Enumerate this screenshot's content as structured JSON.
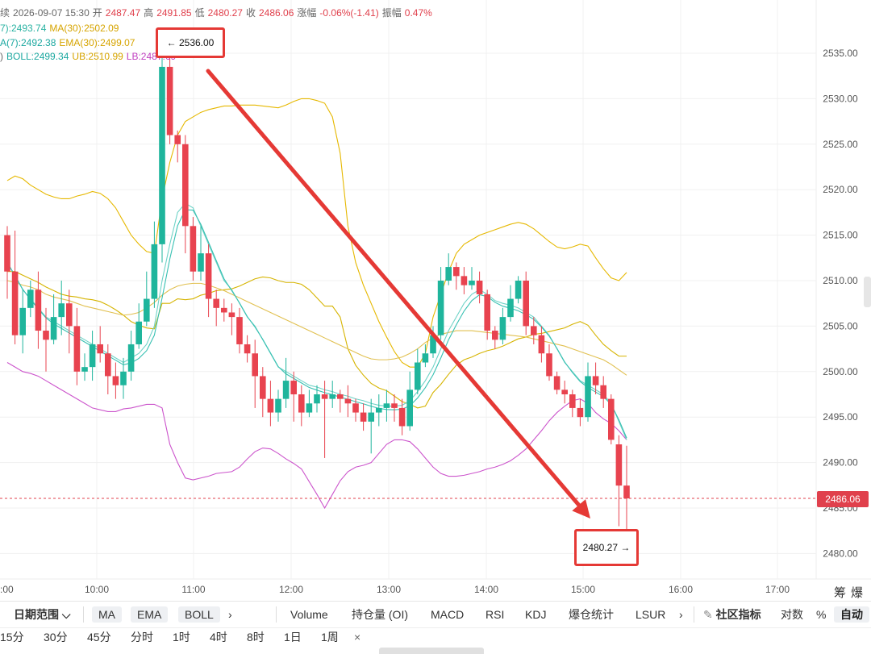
{
  "info": {
    "l1": {
      "prefix": "续",
      "datetime": "2026-09-07 15:30",
      "open_k": "开",
      "open_v": "2487.47",
      "high_k": "高",
      "high_v": "2491.85",
      "low_k": "低",
      "low_v": "2480.27",
      "close_k": "收",
      "close_v": "2486.06",
      "chg_k": "涨幅",
      "chg_v": "-0.06%(-1.41)",
      "amp_k": "振幅",
      "amp_v": "0.47%"
    },
    "l2": {
      "ma7": "7):2493.74",
      "ma30": "MA(30):2502.09"
    },
    "l3": {
      "ema7": "A(7):2492.38",
      "ema30": "EMA(30):2499.07"
    },
    "l4": {
      "prefix": ")",
      "boll": "BOLL:2499.34",
      "ub": "UB:2510.99",
      "lb": "LB:2487.69"
    }
  },
  "annotations": {
    "high_box": "← 2536.00",
    "low_box": "2480.27 →",
    "current_price": "2486.06"
  },
  "colors": {
    "up": "#1fb59c",
    "down": "#e8434f",
    "ma7": "#6fd3c7",
    "ma30": "#e8b200",
    "ema7": "#37c0b2",
    "ema30": "#e1c050",
    "boll": "#d6b400",
    "ub": "#e6b800",
    "lb": "#cc55cc",
    "arrow": "#e53935"
  },
  "corner": {
    "a": "筹",
    "b": "爆"
  },
  "toolbar1": {
    "date_range": "日期范围",
    "ma": "MA",
    "ema": "EMA",
    "boll": "BOLL",
    "more": "›",
    "volume": "Volume",
    "oi": "持仓量 (OI)",
    "macd": "MACD",
    "rsi": "RSI",
    "kdj": "KDJ",
    "liq": "爆仓统计",
    "lsur": "LSUR",
    "more2": "›",
    "community": "社区指标",
    "log": "对数",
    "pct": "%",
    "auto": "自动"
  },
  "toolbar2": {
    "i1": "15分",
    "i2": "30分",
    "i3": "45分",
    "i4": "分时",
    "i5": "1时",
    "i6": "4时",
    "i7": "8时",
    "i8": "1日",
    "i9": "1周",
    "close": "×"
  },
  "chart_data": {
    "type": "candlestick",
    "symbol_note": "",
    "y_ticks": [
      2535,
      2530,
      2525,
      2520,
      2515,
      2510,
      2505,
      2500,
      2495,
      2490,
      2485,
      2480
    ],
    "y_tick_labels": [
      "2535.00",
      "2530.00",
      "2525.00",
      "2520.00",
      "2515.00",
      "2510.00",
      "2505.00",
      "2500.00",
      "2495.00",
      "2490.00",
      "2485.00",
      "2480.00"
    ],
    "x_ticks": [
      "10:00",
      "11:00",
      "12:00",
      "13:00",
      "14:00",
      "15:00",
      "16:00",
      "17:00"
    ],
    "x_first_partial": ":00",
    "ylim": [
      2476.5,
      2539.0
    ],
    "current_price": 2486.06,
    "candles": [
      [
        2515.0,
        2511.0,
        2516.0,
        2508.0
      ],
      [
        2511.0,
        2504.0,
        2515.5,
        2503.0
      ],
      [
        2504.0,
        2507.0,
        2509.0,
        2502.0
      ],
      [
        2507.0,
        2509.0,
        2510.0,
        2506.0
      ],
      [
        2509.0,
        2504.5,
        2511.0,
        2502.5
      ],
      [
        2504.5,
        2503.5,
        2507.0,
        2500.0
      ],
      [
        2503.5,
        2506.0,
        2508.5,
        2503.0
      ],
      [
        2506.0,
        2507.5,
        2510.0,
        2504.0
      ],
      [
        2507.5,
        2505.0,
        2509.0,
        2502.0
      ],
      [
        2505.0,
        2500.0,
        2507.0,
        2498.5
      ],
      [
        2500.0,
        2500.5,
        2502.0,
        2499.0
      ],
      [
        2500.5,
        2503.0,
        2504.5,
        2499.0
      ],
      [
        2503.0,
        2502.0,
        2505.0,
        2501.0
      ],
      [
        2502.0,
        2499.5,
        2503.0,
        2497.5
      ],
      [
        2499.5,
        2498.5,
        2501.0,
        2497.0
      ],
      [
        2498.5,
        2500.0,
        2501.5,
        2497.0
      ],
      [
        2500.0,
        2503.0,
        2504.5,
        2499.0
      ],
      [
        2503.0,
        2505.5,
        2507.5,
        2502.5
      ],
      [
        2505.5,
        2508.0,
        2511.0,
        2505.0
      ],
      [
        2508.0,
        2514.0,
        2516.5,
        2507.0
      ],
      [
        2514.0,
        2533.5,
        2535.5,
        2512.0
      ],
      [
        2533.5,
        2526.0,
        2536.0,
        2525.0
      ],
      [
        2526.0,
        2525.0,
        2526.5,
        2523.0
      ],
      [
        2525.0,
        2516.0,
        2526.0,
        2513.0
      ],
      [
        2516.0,
        2511.0,
        2517.0,
        2510.0
      ],
      [
        2511.0,
        2513.0,
        2516.0,
        2510.0
      ],
      [
        2513.0,
        2508.0,
        2514.0,
        2506.0
      ],
      [
        2508.0,
        2507.0,
        2509.0,
        2505.0
      ],
      [
        2507.0,
        2506.5,
        2508.0,
        2505.5
      ],
      [
        2506.5,
        2506.0,
        2507.5,
        2504.0
      ],
      [
        2506.0,
        2503.0,
        2507.0,
        2502.0
      ],
      [
        2503.0,
        2502.0,
        2504.0,
        2501.0
      ],
      [
        2502.0,
        2499.5,
        2503.5,
        2496.0
      ],
      [
        2499.5,
        2497.0,
        2500.5,
        2495.0
      ],
      [
        2497.0,
        2495.5,
        2499.0,
        2494.0
      ],
      [
        2495.5,
        2497.0,
        2498.0,
        2494.5
      ],
      [
        2497.0,
        2499.0,
        2501.5,
        2496.0
      ],
      [
        2499.0,
        2497.5,
        2500.0,
        2494.5
      ],
      [
        2497.5,
        2495.5,
        2498.5,
        2494.0
      ],
      [
        2495.5,
        2496.5,
        2498.0,
        2495.0
      ],
      [
        2496.5,
        2497.5,
        2498.5,
        2495.5
      ],
      [
        2497.5,
        2497.0,
        2499.0,
        2490.5
      ],
      [
        2497.0,
        2497.5,
        2499.0,
        2496.0
      ],
      [
        2497.5,
        2497.0,
        2498.0,
        2495.5
      ],
      [
        2497.0,
        2496.5,
        2498.5,
        2495.0
      ],
      [
        2496.5,
        2495.5,
        2497.0,
        2494.5
      ],
      [
        2495.5,
        2494.5,
        2496.5,
        2493.5
      ],
      [
        2494.5,
        2495.5,
        2497.0,
        2491.0
      ],
      [
        2495.5,
        2496.0,
        2497.5,
        2494.0
      ],
      [
        2496.0,
        2496.5,
        2498.0,
        2494.5
      ],
      [
        2496.5,
        2496.0,
        2497.5,
        2494.5
      ],
      [
        2496.0,
        2494.0,
        2497.0,
        2493.0
      ],
      [
        2494.0,
        2498.0,
        2500.0,
        2493.5
      ],
      [
        2498.0,
        2501.0,
        2502.5,
        2497.5
      ],
      [
        2501.0,
        2502.0,
        2503.0,
        2500.5
      ],
      [
        2502.0,
        2504.0,
        2505.0,
        2501.5
      ],
      [
        2504.0,
        2510.0,
        2511.5,
        2503.5
      ],
      [
        2510.0,
        2511.5,
        2513.0,
        2509.5
      ],
      [
        2511.5,
        2510.5,
        2512.0,
        2509.0
      ],
      [
        2510.5,
        2509.5,
        2511.5,
        2508.5
      ],
      [
        2509.5,
        2510.0,
        2511.5,
        2509.0
      ],
      [
        2510.0,
        2508.5,
        2511.0,
        2507.5
      ],
      [
        2508.5,
        2504.5,
        2509.0,
        2503.5
      ],
      [
        2504.5,
        2503.5,
        2505.0,
        2502.5
      ],
      [
        2503.5,
        2506.0,
        2507.0,
        2503.0
      ],
      [
        2506.0,
        2508.0,
        2509.5,
        2505.5
      ],
      [
        2508.0,
        2510.0,
        2510.5,
        2507.5
      ],
      [
        2510.0,
        2505.0,
        2511.0,
        2504.0
      ],
      [
        2505.0,
        2504.0,
        2506.0,
        2503.0
      ],
      [
        2504.0,
        2502.0,
        2505.0,
        2501.0
      ],
      [
        2502.0,
        2499.5,
        2503.0,
        2499.0
      ],
      [
        2499.5,
        2498.0,
        2500.0,
        2497.5
      ],
      [
        2498.0,
        2497.5,
        2499.0,
        2496.5
      ],
      [
        2497.5,
        2496.0,
        2498.0,
        2495.0
      ],
      [
        2496.0,
        2495.0,
        2497.0,
        2494.0
      ],
      [
        2495.0,
        2499.5,
        2501.0,
        2494.5
      ],
      [
        2499.5,
        2498.5,
        2501.0,
        2497.5
      ],
      [
        2498.5,
        2497.0,
        2499.5,
        2496.0
      ],
      [
        2497.0,
        2492.5,
        2497.5,
        2492.0
      ],
      [
        2492.0,
        2487.47,
        2493.0,
        2483.0
      ],
      [
        2487.47,
        2486.06,
        2491.85,
        2480.27
      ]
    ],
    "ma7": [
      2512,
      2510.5,
      2509,
      2508,
      2507,
      2506,
      2505.5,
      2505,
      2504.5,
      2504,
      2503.5,
      2503,
      2502.5,
      2502,
      2501.5,
      2501,
      2501.5,
      2502,
      2503,
      2505,
      2510,
      2514,
      2517.5,
      2518.5,
      2518,
      2516,
      2514,
      2512,
      2510,
      2509,
      2507.5,
      2506,
      2505,
      2503.5,
      2502,
      2500.5,
      2500,
      2499.5,
      2499,
      2498.5,
      2498.3,
      2498,
      2497.8,
      2497.5,
      2497.3,
      2497,
      2496.8,
      2496.5,
      2496.3,
      2496.2,
      2496.2,
      2496.3,
      2496.8,
      2497.8,
      2499,
      2500.5,
      2502.5,
      2504.5,
      2506,
      2507.5,
      2508.5,
      2509,
      2508.5,
      2507.8,
      2507.5,
      2507.3,
      2507,
      2506.5,
      2506,
      2505,
      2504,
      2502.5,
      2501,
      2500,
      2499,
      2498.5,
      2498,
      2497.5,
      2496.5,
      2494.5,
      2492.5
    ],
    "ma30": [
      2510,
      2509.8,
      2509.5,
      2509.3,
      2509,
      2508.5,
      2508.2,
      2508,
      2507.8,
      2507.5,
      2507.2,
      2507,
      2506.8,
      2506.6,
      2506.4,
      2506.2,
      2506.3,
      2506.5,
      2507,
      2507.6,
      2508.4,
      2509,
      2509.4,
      2509.6,
      2509.7,
      2509.7,
      2509.5,
      2509.2,
      2508.9,
      2508.5,
      2508.1,
      2507.7,
      2507.3,
      2506.9,
      2506.5,
      2506.1,
      2505.7,
      2505.3,
      2504.9,
      2504.5,
      2504.1,
      2503.7,
      2503.3,
      2502.9,
      2502.5,
      2502.1,
      2501.7,
      2501.4,
      2501.3,
      2501.3,
      2501.4,
      2501.6,
      2502,
      2502.5,
      2503.2,
      2503.7,
      2504.1,
      2504.3,
      2504.5,
      2504.5,
      2504.5,
      2504.4,
      2504.3,
      2504.2,
      2504.1,
      2504,
      2503.9,
      2503.8,
      2503.6,
      2503.4,
      2503.2,
      2503,
      2502.8,
      2502.5,
      2502.2,
      2501.9,
      2501.6,
      2501.3,
      2500.8,
      2500.2,
      2499.6
    ],
    "ub": [
      2521,
      2521.5,
      2521.2,
      2520.5,
      2520,
      2519.5,
      2519.2,
      2519,
      2519,
      2519.3,
      2519.5,
      2519.8,
      2519.6,
      2519,
      2518,
      2516.5,
      2515,
      2514,
      2513.2,
      2513,
      2519,
      2523,
      2526,
      2527.5,
      2528,
      2528.5,
      2528.8,
      2529,
      2529.2,
      2529.2,
      2529.3,
      2529.3,
      2529.3,
      2529.2,
      2529.1,
      2529,
      2529.3,
      2529.7,
      2530,
      2530,
      2529.8,
      2529.5,
      2528,
      2524,
      2516,
      2512,
      2509.5,
      2507.5,
      2505.5,
      2503.8,
      2502.2,
      2501,
      2500.5,
      2500.5,
      2502,
      2506,
      2508.5,
      2511,
      2513,
      2514,
      2514.5,
      2515,
      2515.3,
      2515.6,
      2515.9,
      2516.2,
      2516.4,
      2516.2,
      2515.7,
      2515,
      2514.3,
      2513.7,
      2513.5,
      2513.7,
      2514,
      2513.8,
      2512.5,
      2511.3,
      2510.3,
      2510,
      2510.9
    ],
    "lb": [
      2501,
      2500.5,
      2500,
      2499.8,
      2499.5,
      2499,
      2498.5,
      2498,
      2497.5,
      2497,
      2496.5,
      2496,
      2495.8,
      2495.6,
      2495.6,
      2495.9,
      2496,
      2496.2,
      2496.4,
      2496.4,
      2496,
      2492,
      2490,
      2488.3,
      2488.1,
      2488.3,
      2488.5,
      2488.8,
      2488.9,
      2489,
      2489.5,
      2490.4,
      2491.2,
      2491.6,
      2491.5,
      2491,
      2490.4,
      2489.9,
      2489.3,
      2487.9,
      2486.5,
      2485,
      2486.5,
      2488,
      2489,
      2489.5,
      2489.7,
      2490,
      2491,
      2492,
      2492.5,
      2492.5,
      2492.3,
      2491.5,
      2490.5,
      2489.5,
      2488.8,
      2488.5,
      2488.5,
      2488.6,
      2488.8,
      2489,
      2489.3,
      2489.5,
      2489.8,
      2490.2,
      2490.8,
      2491.5,
      2492.5,
      2493.5,
      2494.6,
      2495.5,
      2496.2,
      2496.8,
      2497,
      2496.5,
      2495.5,
      2494.8,
      2494.3,
      2493.5,
      2492.5
    ],
    "boll": [
      2511,
      2511,
      2510.6,
      2510.2,
      2509.8,
      2509.3,
      2508.9,
      2508.5,
      2508.3,
      2508.2,
      2508,
      2507.9,
      2507.7,
      2507.3,
      2506.8,
      2506.2,
      2505.5,
      2505.1,
      2504.8,
      2504.7,
      2507.5,
      2507.5,
      2508,
      2507.9,
      2508,
      2508.4,
      2508.6,
      2508.9,
      2509,
      2509.1,
      2509.4,
      2509.8,
      2510.2,
      2510.4,
      2510.3,
      2510,
      2509.8,
      2509.8,
      2509.6,
      2509,
      2508.1,
      2507.2,
      2507.2,
      2506,
      2502.5,
      2500.7,
      2499.6,
      2498.7,
      2498.2,
      2497.9,
      2497.3,
      2496.7,
      2496.4,
      2496,
      2496.2,
      2497.7,
      2498.6,
      2499.7,
      2500.7,
      2501.3,
      2501.6,
      2502,
      2502.3,
      2502.5,
      2502.8,
      2503.2,
      2503.6,
      2503.8,
      2504.1,
      2504.2,
      2504.4,
      2504.6,
      2504.8,
      2505.2,
      2505.5,
      2505.1,
      2504,
      2503,
      2502.3,
      2501.7,
      2501.7
    ]
  }
}
